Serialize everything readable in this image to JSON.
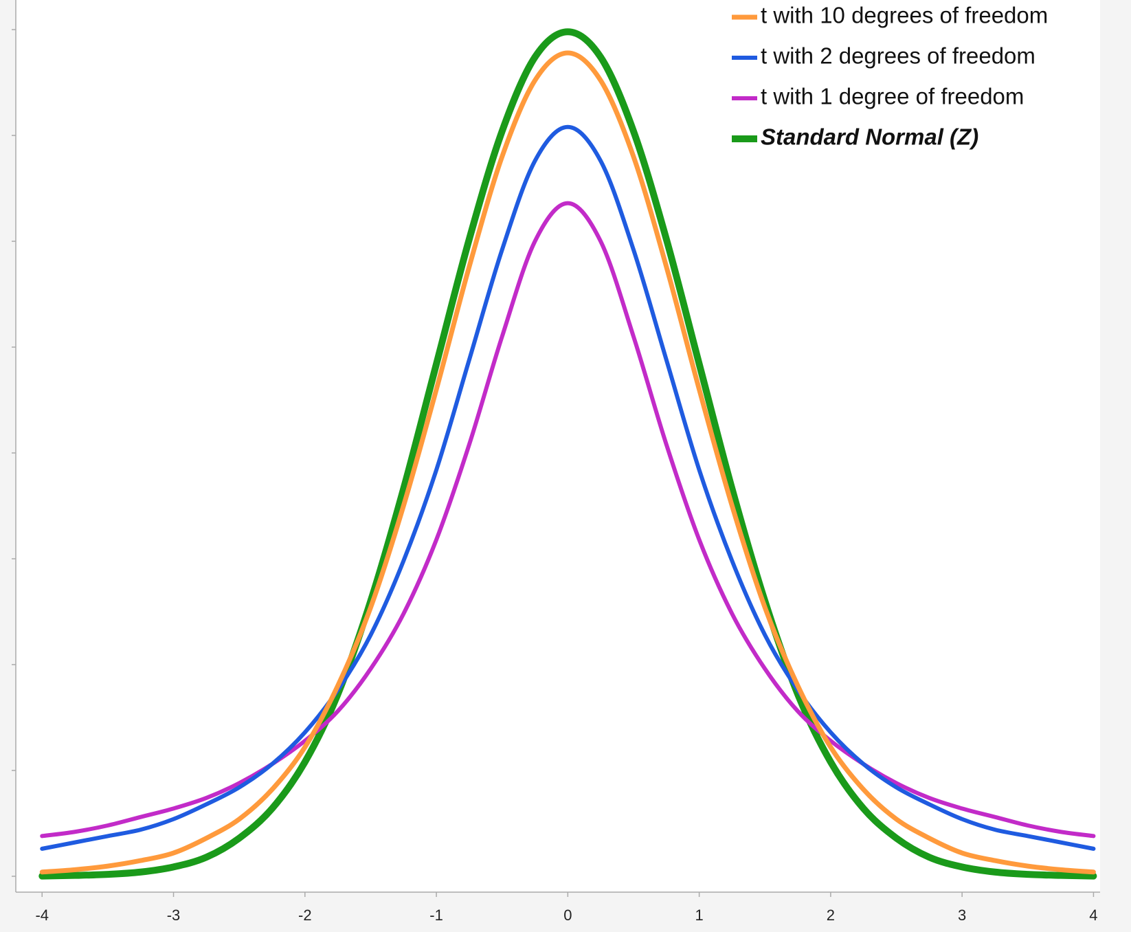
{
  "chart_data": {
    "type": "line",
    "x": [
      -4,
      -3.75,
      -3.5,
      -3.25,
      -3,
      -2.75,
      -2.5,
      -2.25,
      -2,
      -1.75,
      -1.5,
      -1.25,
      -1,
      -0.75,
      -0.5,
      -0.25,
      0,
      0.25,
      0.5,
      0.75,
      1,
      1.25,
      1.5,
      1.75,
      2,
      2.25,
      2.5,
      2.75,
      3,
      3.25,
      3.5,
      3.75,
      4
    ],
    "series": [
      {
        "name": "t with 10 degrees of freedom",
        "color": "#ff9a3c",
        "width": 7,
        "values": [
          0.002,
          0.0031,
          0.0048,
          0.0074,
          0.011,
          0.018,
          0.027,
          0.041,
          0.061,
          0.09,
          0.127,
          0.175,
          0.23,
          0.288,
          0.34,
          0.376,
          0.389,
          0.376,
          0.34,
          0.288,
          0.23,
          0.175,
          0.127,
          0.09,
          0.061,
          0.041,
          0.027,
          0.018,
          0.011,
          0.0074,
          0.0048,
          0.0031,
          0.002
        ]
      },
      {
        "name": "t with 2 degrees of freedom",
        "color": "#1f5be0",
        "width": 6,
        "values": [
          0.013,
          0.016,
          0.019,
          0.022,
          0.027,
          0.034,
          0.042,
          0.053,
          0.068,
          0.088,
          0.114,
          0.149,
          0.192,
          0.244,
          0.296,
          0.338,
          0.354,
          0.338,
          0.296,
          0.244,
          0.192,
          0.149,
          0.114,
          0.088,
          0.068,
          0.053,
          0.042,
          0.034,
          0.027,
          0.022,
          0.019,
          0.016,
          0.013
        ]
      },
      {
        "name": "t with 1 degree of freedom",
        "color": "#c22bc8",
        "width": 6,
        "values": [
          0.019,
          0.021,
          0.024,
          0.028,
          0.032,
          0.037,
          0.044,
          0.053,
          0.064,
          0.078,
          0.098,
          0.124,
          0.159,
          0.204,
          0.255,
          0.3,
          0.318,
          0.3,
          0.255,
          0.204,
          0.159,
          0.124,
          0.098,
          0.078,
          0.064,
          0.053,
          0.044,
          0.037,
          0.032,
          0.028,
          0.024,
          0.021,
          0.019
        ]
      },
      {
        "name": "Standard Normal (Z)",
        "color": "#1a9a1a",
        "width": 10,
        "emphasis": true,
        "values": [
          0.0001,
          0.0004,
          0.0009,
          0.002,
          0.0044,
          0.009,
          0.018,
          0.032,
          0.054,
          0.086,
          0.13,
          0.183,
          0.242,
          0.301,
          0.352,
          0.387,
          0.399,
          0.387,
          0.352,
          0.301,
          0.242,
          0.183,
          0.13,
          0.086,
          0.054,
          0.032,
          0.018,
          0.009,
          0.0044,
          0.002,
          0.0009,
          0.0004,
          0.0001
        ]
      }
    ],
    "xlim": [
      -4.2,
      4.05
    ],
    "xticks": [
      -4,
      -3,
      -2,
      -1,
      0,
      1,
      2,
      3,
      4
    ],
    "ylim": [
      -0.0075,
      0.414
    ],
    "yticks": [
      0,
      0.05,
      0.1,
      0.15,
      0.2,
      0.25,
      0.3,
      0.35,
      0.4
    ],
    "ytick_labels": false,
    "grid": false,
    "legend": "top-right"
  }
}
